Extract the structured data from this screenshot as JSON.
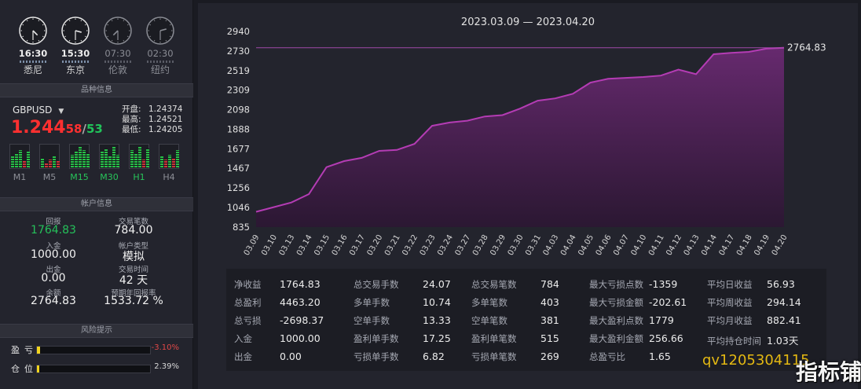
{
  "clocks": [
    {
      "time": "16:30",
      "city": "悉尼",
      "active": true,
      "h": 16,
      "m": 30
    },
    {
      "time": "15:30",
      "city": "东京",
      "active": true,
      "h": 15,
      "m": 30
    },
    {
      "time": "07:30",
      "city": "伦敦",
      "active": false,
      "h": 7,
      "m": 30
    },
    {
      "time": "02:30",
      "city": "纽约",
      "active": false,
      "h": 2,
      "m": 30
    }
  ],
  "product": {
    "header": "品种信息",
    "symbol": "GBPUSD",
    "price_main": "1.244",
    "price_bid": "58",
    "price_sep": "/",
    "price_ask": "53",
    "open_label": "开盘:",
    "open": "1.24374",
    "high_label": "最高:",
    "high": "1.24521",
    "low_label": "最低:",
    "low": "1.24205",
    "timeframes": [
      {
        "label": "M1",
        "up": false
      },
      {
        "label": "M5",
        "up": false
      },
      {
        "label": "M15",
        "up": true
      },
      {
        "label": "M30",
        "up": true
      },
      {
        "label": "H1",
        "up": true
      },
      {
        "label": "H4",
        "up": false
      }
    ]
  },
  "account": {
    "header": "帐户信息",
    "drawdown_label": "回报",
    "drawdown": "1764.83",
    "trades_label": "交易笔数",
    "trades": "784.00",
    "deposit_label": "入金",
    "deposit": "1000.00",
    "type_label": "帐户类型",
    "type": "模拟",
    "withdraw_label": "出金",
    "withdraw": "0.00",
    "time_label": "交易时间",
    "time": "42 天",
    "balance_label": "余额",
    "balance": "2764.83",
    "yield_label": "预期年回报率",
    "yield": "1533.72 %"
  },
  "risk": {
    "header": "风险提示",
    "pl_label": "盈亏",
    "pl_value": "-3.10%",
    "pl_level": 0.031,
    "pos_label": "仓位",
    "pos_value": "2.39%",
    "pos_level": 0.0239
  },
  "chart_data": {
    "type": "area",
    "title": "2023.03.09 — 2023.04.20",
    "x": [
      "03.09",
      "03.10",
      "03.13",
      "03.14",
      "03.15",
      "03.16",
      "03.17",
      "03.20",
      "03.21",
      "03.22",
      "03.23",
      "03.24",
      "03.27",
      "03.28",
      "03.29",
      "03.30",
      "03.31",
      "04.03",
      "04.04",
      "04.05",
      "04.06",
      "04.07",
      "04.10",
      "04.11",
      "04.12",
      "04.13",
      "04.14",
      "04.17",
      "04.18",
      "04.19",
      "04.20"
    ],
    "values": [
      1000,
      1050,
      1100,
      1190,
      1480,
      1545,
      1580,
      1655,
      1665,
      1730,
      1925,
      1960,
      1980,
      2025,
      2040,
      2110,
      2195,
      2220,
      2270,
      2390,
      2430,
      2440,
      2450,
      2465,
      2530,
      2480,
      2695,
      2710,
      2720,
      2755,
      2764.83
    ],
    "yticks": [
      835,
      1046,
      1256,
      1467,
      1677,
      1888,
      2098,
      2309,
      2519,
      2730,
      2940
    ],
    "ylim": [
      835,
      2940
    ],
    "last_label": "2764.83",
    "line_color": "#b43cb4",
    "fill_color": "#4e1d55"
  },
  "stats": [
    [
      {
        "k": "净收益",
        "v": "1764.83"
      },
      {
        "k": "总盈利",
        "v": "4463.20"
      },
      {
        "k": "总亏损",
        "v": "-2698.37"
      },
      {
        "k": "入金",
        "v": "1000.00"
      },
      {
        "k": "出金",
        "v": "0.00"
      }
    ],
    [
      {
        "k": "总交易手数",
        "v": "24.07"
      },
      {
        "k": "多单手数",
        "v": "10.74"
      },
      {
        "k": "空单手数",
        "v": "13.33"
      },
      {
        "k": "盈利单手数",
        "v": "17.25"
      },
      {
        "k": "亏损单手数",
        "v": "6.82"
      }
    ],
    [
      {
        "k": "总交易笔数",
        "v": "784"
      },
      {
        "k": "多单笔数",
        "v": "403"
      },
      {
        "k": "空单笔数",
        "v": "381"
      },
      {
        "k": "盈利单笔数",
        "v": "515"
      },
      {
        "k": "亏损单笔数",
        "v": "269"
      }
    ],
    [
      {
        "k": "最大亏损点数",
        "v": "-1359"
      },
      {
        "k": "最大亏损金额",
        "v": "-202.61"
      },
      {
        "k": "最大盈利点数",
        "v": "1779"
      },
      {
        "k": "最大盈利金额",
        "v": "256.66"
      },
      {
        "k": "总盈亏比",
        "v": "1.65"
      }
    ],
    [
      {
        "k": "平均日收益",
        "v": "56.93"
      },
      {
        "k": "平均周收益",
        "v": "294.14"
      },
      {
        "k": "平均月收益",
        "v": "882.41"
      },
      {
        "k": "平均持仓时间",
        "v": "1.03天"
      },
      {
        "k": "",
        "v": ""
      }
    ]
  ],
  "watermark": {
    "text": "qv1205304115",
    "brand": "指标铺"
  }
}
